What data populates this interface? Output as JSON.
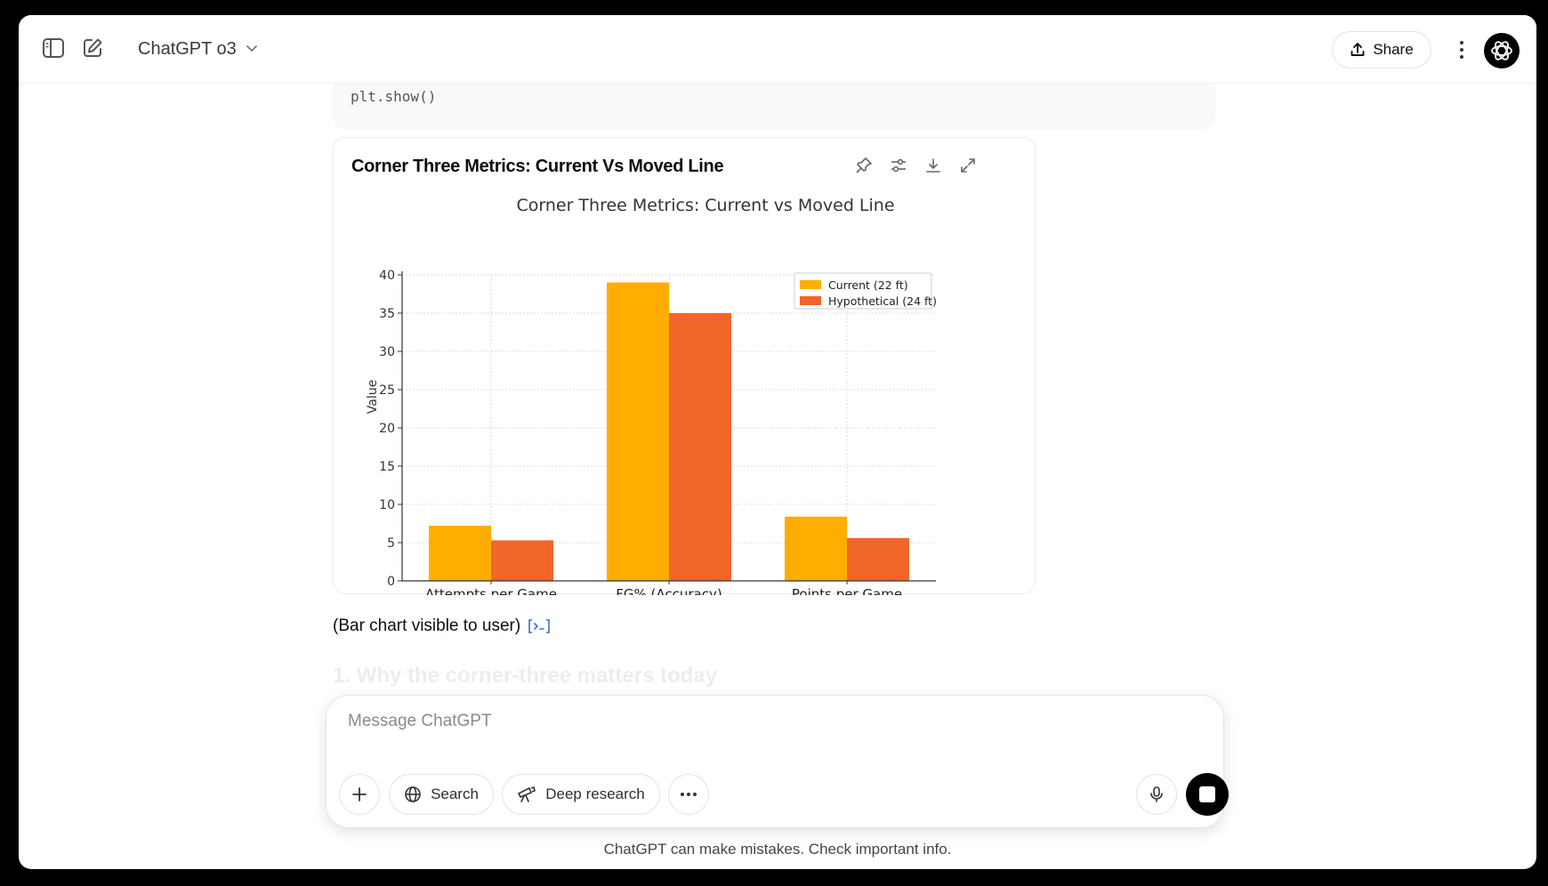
{
  "header": {
    "model_label": "ChatGPT o3",
    "share_label": "Share"
  },
  "code_tail": {
    "text": "plt.show()"
  },
  "chart_card": {
    "title": "Corner Three Metrics: Current Vs Moved Line"
  },
  "chart_data": {
    "type": "bar",
    "title": "Corner Three Metrics: Current vs Moved Line",
    "xlabel": "",
    "ylabel": "Value",
    "categories": [
      "Attempts per Game",
      "FG% (Accuracy)",
      "Points per Game"
    ],
    "series": [
      {
        "name": "Current (22 ft)",
        "color": "#ffad00",
        "values": [
          7.2,
          39.0,
          8.4
        ]
      },
      {
        "name": "Hypothetical (24 ft)",
        "color": "#f2662a",
        "values": [
          5.3,
          35.0,
          5.6
        ]
      }
    ],
    "ylim": [
      0,
      40
    ],
    "yticks": [
      0,
      5,
      10,
      15,
      20,
      25,
      30,
      35,
      40
    ],
    "grid": true,
    "legend_position": "top-right"
  },
  "message": {
    "text": "(Bar chart visible to user)"
  },
  "faded_heading": "1. Why the corner-three matters today",
  "composer": {
    "placeholder": "Message ChatGPT",
    "search_label": "Search",
    "deep_research_label": "Deep research"
  },
  "footer": {
    "note": "ChatGPT can make mistakes. Check important info."
  }
}
